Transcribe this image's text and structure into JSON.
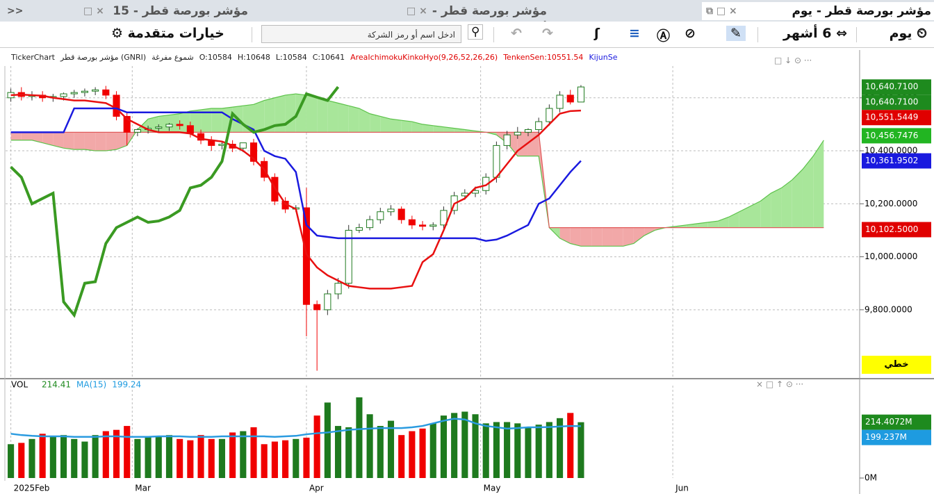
{
  "ui": {
    "tabs": [
      "<<",
      "مؤشر بورصة قطر - 15 دقيقة",
      "مؤشر بورصة قطر - أسبوع",
      "مؤشر بورصة قطر - يوم"
    ],
    "toolbar": {
      "period": "يوم",
      "range": "6 أشهر",
      "search_placeholder": "ادخل اسم أو رمز الشركة",
      "advanced": "خيارات متقدمة"
    },
    "info": [
      "TickerChart",
      "مؤشر بورصة قطر (GNRI)",
      "شموع مفرغة",
      "O:10584",
      "H:10648",
      "L:10584",
      "C:10641"
    ],
    "indicator_info": [
      {
        "text": "AreaIchimokuKinkoHyo(9,26,52,26,26)",
        "color": "#e00000"
      },
      {
        "text": "TenkenSen:10551.54",
        "color": "#e00000"
      },
      {
        "text": "KijunSe",
        "color": "#1a1adf"
      }
    ],
    "scale_mode": "خطي"
  },
  "chart_data": [
    {
      "type": "candlestick",
      "xlim": [
        -0.5,
        80.4
      ],
      "ylim": [
        9540,
        10720
      ],
      "yticks": [
        {
          "value": 9800,
          "label": "9,800.0000"
        },
        {
          "value": 10000,
          "label": "10,000.0000"
        },
        {
          "value": 10200,
          "label": "10,200.0000"
        },
        {
          "value": 10400,
          "label": "10,400.0000"
        },
        {
          "value": 10600,
          "label": "10,600.0000"
        }
      ],
      "grid": true,
      "up_color": "#1e7a1e",
      "down_color": "#f00000",
      "open": [
        10600,
        10620,
        10605,
        10610,
        10600,
        10605,
        10615,
        10620,
        10625,
        10630,
        10610,
        10530,
        10470,
        10480,
        10485,
        10490,
        10500,
        10495,
        10465,
        10440,
        10420,
        10425,
        10410,
        10430,
        10360,
        10300,
        10210,
        10180,
        10185,
        9820,
        9800,
        9860,
        9900,
        10100,
        10110,
        10140,
        10170,
        10180,
        10140,
        10120,
        10115,
        10120,
        10175,
        10230,
        10240,
        10250,
        10300,
        10420,
        10460,
        10470,
        10480,
        10510,
        10560,
        10610,
        10584
      ],
      "high": [
        10635,
        10640,
        10625,
        10625,
        10615,
        10620,
        10630,
        10635,
        10640,
        10645,
        10625,
        10545,
        10485,
        10495,
        10500,
        10505,
        10515,
        10510,
        10480,
        10455,
        10435,
        10440,
        10425,
        10445,
        10375,
        10315,
        10225,
        10195,
        10260,
        9835,
        9875,
        9920,
        10120,
        10125,
        10155,
        10185,
        10195,
        10190,
        10155,
        10135,
        10130,
        10190,
        10245,
        10255,
        10265,
        10315,
        10435,
        10475,
        10490,
        10485,
        10525,
        10575,
        10625,
        10630,
        10648
      ],
      "low": [
        10585,
        10590,
        10590,
        10585,
        10585,
        10590,
        10600,
        10605,
        10610,
        10595,
        10515,
        10420,
        10455,
        10465,
        10470,
        10475,
        10480,
        10450,
        10425,
        10400,
        10405,
        10395,
        10395,
        10345,
        10285,
        10195,
        10165,
        10170,
        9700,
        9570,
        9780,
        9840,
        9880,
        10090,
        10100,
        10125,
        10155,
        10125,
        10105,
        10100,
        10100,
        10105,
        10160,
        10215,
        10225,
        10235,
        10280,
        10405,
        10445,
        10455,
        10465,
        10495,
        10545,
        10575,
        10584
      ],
      "close": [
        10620,
        10605,
        10610,
        10600,
        10605,
        10615,
        10620,
        10625,
        10630,
        10610,
        10530,
        10470,
        10480,
        10485,
        10490,
        10500,
        10495,
        10465,
        10440,
        10420,
        10425,
        10410,
        10430,
        10360,
        10300,
        10210,
        10180,
        10185,
        9820,
        9800,
        9860,
        9900,
        10100,
        10110,
        10140,
        10170,
        10180,
        10140,
        10120,
        10115,
        10120,
        10175,
        10230,
        10240,
        10250,
        10300,
        10420,
        10460,
        10470,
        10480,
        10510,
        10560,
        10610,
        10584,
        10641
      ],
      "cloud": {
        "up_color": "#a8e69a",
        "down_color": "#f2a8a8",
        "a_color": "#5cc24a",
        "b_color": "#e05a5a",
        "senkou_a": [
          10440,
          10440,
          10440,
          10430,
          10420,
          10410,
          10405,
          10405,
          10400,
          10400,
          10405,
          10420,
          10480,
          10520,
          10530,
          10535,
          10540,
          10550,
          10555,
          10560,
          10560,
          10565,
          10570,
          10575,
          10590,
          10600,
          10610,
          10615,
          10610,
          10600,
          10590,
          10580,
          10570,
          10560,
          10540,
          10530,
          10520,
          10515,
          10510,
          10500,
          10495,
          10490,
          10485,
          10480,
          10475,
          10470,
          10460,
          10430,
          10380,
          10380,
          10380,
          10110,
          10070,
          10050,
          10040,
          10040,
          10040,
          10040,
          10040,
          10050,
          10080,
          10100,
          10110,
          10115,
          10120,
          10125,
          10130,
          10135,
          10150,
          10170,
          10190,
          10210,
          10240,
          10260,
          10290,
          10330,
          10380,
          10440
        ],
        "senkou_b": [
          10470,
          10470,
          10470,
          10470,
          10470,
          10470,
          10470,
          10470,
          10470,
          10470,
          10470,
          10470,
          10470,
          10470,
          10470,
          10470,
          10470,
          10470,
          10470,
          10470,
          10470,
          10470,
          10470,
          10470,
          10470,
          10470,
          10470,
          10470,
          10470,
          10470,
          10470,
          10470,
          10470,
          10470,
          10470,
          10470,
          10470,
          10470,
          10470,
          10470,
          10470,
          10470,
          10470,
          10470,
          10470,
          10470,
          10470,
          10470,
          10470,
          10470,
          10470,
          10110,
          10110,
          10110,
          10110,
          10110,
          10110,
          10110,
          10110,
          10110,
          10110,
          10110,
          10110,
          10110,
          10110,
          10110,
          10110,
          10110,
          10110,
          10110,
          10110,
          10110,
          10110,
          10110,
          10110,
          10110,
          10110,
          10110
        ]
      },
      "indicators": [
        {
          "color": "#e81010",
          "values": [
            10610,
            10612,
            10610,
            10608,
            10600,
            10595,
            10590,
            10590,
            10585,
            10580,
            10560,
            10520,
            10500,
            10480,
            10470,
            10470,
            10470,
            10465,
            10445,
            10440,
            10435,
            10420,
            10400,
            10370,
            10330,
            10260,
            10200,
            10180,
            10010,
            9960,
            9930,
            9910,
            9890,
            9885,
            9880,
            9880,
            9880,
            9885,
            9890,
            9980,
            10010,
            10100,
            10200,
            10220,
            10260,
            10270,
            10300,
            10350,
            10400,
            10430,
            10460,
            10500,
            10540,
            10550,
            10552
          ]
        },
        {
          "color": "#1a1adf",
          "values": [
            10470,
            10470,
            10470,
            10470,
            10470,
            10470,
            10560,
            10560,
            10560,
            10560,
            10560,
            10545,
            10545,
            10545,
            10545,
            10545,
            10545,
            10545,
            10545,
            10545,
            10545,
            10520,
            10500,
            10480,
            10400,
            10380,
            10370,
            10320,
            10120,
            10080,
            10075,
            10070,
            10070,
            10070,
            10070,
            10070,
            10070,
            10070,
            10070,
            10070,
            10070,
            10070,
            10070,
            10070,
            10070,
            10060,
            10065,
            10080,
            10100,
            10120,
            10200,
            10220,
            10270,
            10320,
            10362
          ]
        },
        {
          "color": "#3a9a22",
          "values": [
            10339,
            10300,
            10200,
            10220,
            10240,
            9830,
            9780,
            9900,
            9906,
            10050,
            10110,
            10130,
            10150,
            10130,
            10135,
            10150,
            10175,
            10260,
            10270,
            10300,
            10360,
            10540,
            10500,
            10470,
            10480,
            10495,
            10500,
            10530,
            10615,
            10602,
            10590,
            10641
          ]
        }
      ],
      "price_labels": [
        {
          "value": 10640.71,
          "label": "10,640.7100",
          "color": "#1e8a1e"
        },
        {
          "value": 10640.71,
          "label": "10,640.7100",
          "color": "#1e8a1e"
        },
        {
          "value": 10551.5449,
          "label": "10,551.5449",
          "color": "#e00000"
        },
        {
          "value": 10456.7476,
          "label": "10,456.7476",
          "color": "#22b522"
        },
        {
          "value": 10361.9502,
          "label": "10,361.9502",
          "color": "#1a1adf"
        },
        {
          "value": 10102.5,
          "label": "10,102.5000",
          "color": "#e00000"
        }
      ]
    },
    {
      "type": "bar",
      "title": "VOL",
      "legend": [
        {
          "text": "214.41",
          "color": "#1e8a1e"
        },
        {
          "text": "MA(15)",
          "color": "#1e9be0"
        },
        {
          "text": "199.24",
          "color": "#1e9be0"
        }
      ],
      "ylim": [
        0,
        355
      ],
      "yticks": [
        {
          "value": 0,
          "label": "0M"
        }
      ],
      "xticks": [
        {
          "value": 0,
          "label": "2025Feb"
        },
        {
          "value": 11.5,
          "label": "Mar"
        },
        {
          "value": 28,
          "label": "Apr"
        },
        {
          "value": 44.5,
          "label": "May"
        },
        {
          "value": 62.7,
          "label": "Jun"
        }
      ],
      "values": [
        130,
        135,
        150,
        170,
        160,
        165,
        150,
        140,
        165,
        180,
        185,
        200,
        150,
        160,
        160,
        165,
        150,
        145,
        165,
        150,
        150,
        175,
        180,
        195,
        130,
        140,
        145,
        150,
        155,
        240,
        290,
        200,
        195,
        310,
        245,
        200,
        220,
        165,
        180,
        190,
        210,
        240,
        250,
        255,
        245,
        210,
        215,
        215,
        210,
        195,
        205,
        215,
        230,
        250,
        214.41
      ],
      "ma": {
        "color": "#2a9be0",
        "values": [
          170,
          165,
          162,
          160,
          160,
          160,
          158,
          158,
          158,
          160,
          160,
          158,
          158,
          158,
          160,
          160,
          160,
          158,
          158,
          158,
          160,
          160,
          160,
          160,
          160,
          158,
          160,
          162,
          168,
          172,
          175,
          180,
          185,
          188,
          190,
          192,
          192,
          192,
          195,
          200,
          210,
          220,
          228,
          225,
          210,
          200,
          195,
          190,
          192,
          195,
          195,
          196,
          198,
          200,
          199.24
        ]
      },
      "value_labels": [
        {
          "value": 214.4072,
          "label": "214.4072M",
          "color": "#1e8a1e"
        },
        {
          "value": 199.237,
          "label": "199.237M",
          "color": "#1e9be0"
        }
      ]
    }
  ]
}
